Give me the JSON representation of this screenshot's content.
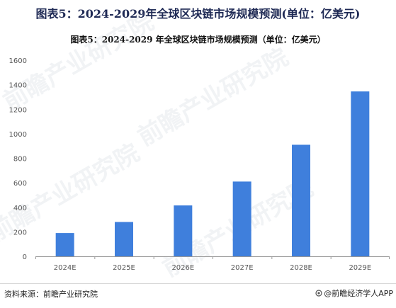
{
  "header": {
    "title": "图表5：2024-2029年全球区块链市场规模预测(单位：亿美元)"
  },
  "chart_data": {
    "type": "bar",
    "title": "图表5：2024-2029 年全球区块链市场规模预测（单位：亿美元）",
    "xlabel": "",
    "ylabel": "",
    "categories": [
      "2024E",
      "2025E",
      "2026E",
      "2027E",
      "2028E",
      "2029E"
    ],
    "values": [
      190,
      280,
      415,
      610,
      910,
      1345
    ],
    "ylim": [
      0,
      1600
    ],
    "yticks": [
      0,
      200,
      400,
      600,
      800,
      1000,
      1200,
      1400,
      1600
    ],
    "ytick_labels": [
      "0",
      "200",
      "400",
      "600",
      "800",
      "1000",
      "1200",
      "1400",
      "1600"
    ],
    "grid": false,
    "legend": "none",
    "bar_color": "#3f7fdc"
  },
  "footer": {
    "source": "资料来源：前瞻产业研究院",
    "app_label": "@前瞻经济学人APP",
    "app_icon": "app-logo-icon"
  },
  "watermark": {
    "text": "前瞻产业研究院"
  },
  "colors": {
    "title": "#1f2a55",
    "bar": "#3f7fdc",
    "axis": "#999999",
    "tick_text": "#555555"
  }
}
